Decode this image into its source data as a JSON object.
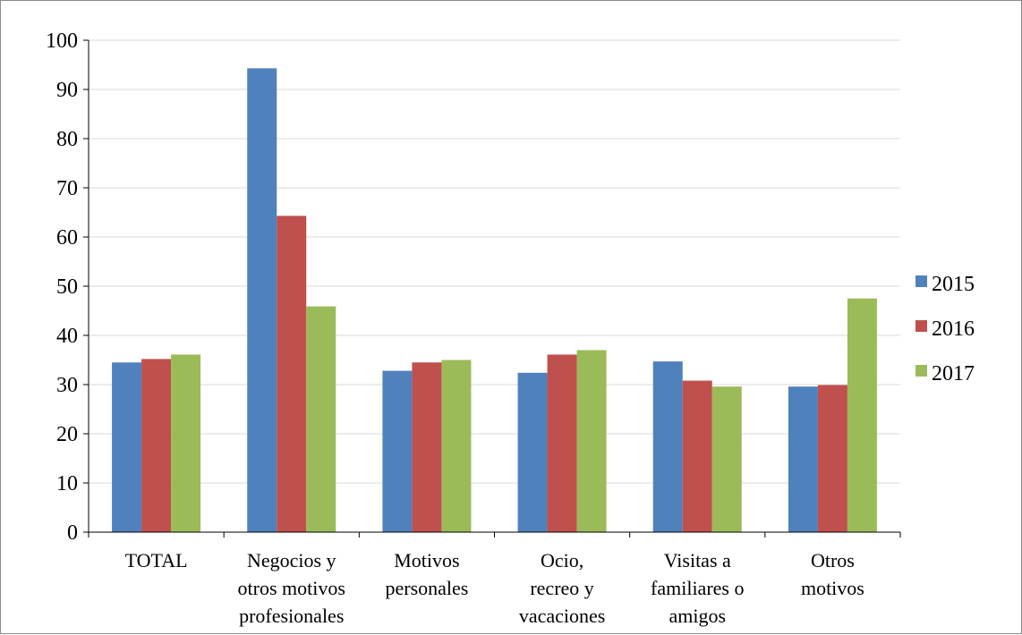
{
  "chart_data": {
    "type": "bar",
    "title": "",
    "xlabel": "",
    "ylabel": "",
    "ylim": [
      0,
      100
    ],
    "yticks": [
      0,
      10,
      20,
      30,
      40,
      50,
      60,
      70,
      80,
      90,
      100
    ],
    "grid": true,
    "legend_position": "right",
    "categories": [
      [
        "TOTAL"
      ],
      [
        "Negocios y",
        "otros motivos",
        "profesionales"
      ],
      [
        "Motivos",
        "personales"
      ],
      [
        "Ocio,",
        "recreo y",
        "vacaciones"
      ],
      [
        "Visitas a",
        "familiares o",
        "amigos"
      ],
      [
        "Otros",
        "motivos"
      ]
    ],
    "series": [
      {
        "name": "2015",
        "color": "#4f81bd",
        "values": [
          34.5,
          94.3,
          32.8,
          32.4,
          34.7,
          29.6
        ]
      },
      {
        "name": "2016",
        "color": "#c0504d",
        "values": [
          35.2,
          64.3,
          34.5,
          36.1,
          30.8,
          29.9
        ]
      },
      {
        "name": "2017",
        "color": "#9bbb59",
        "values": [
          36.1,
          45.9,
          35.0,
          37.0,
          29.6,
          47.5
        ]
      }
    ]
  }
}
